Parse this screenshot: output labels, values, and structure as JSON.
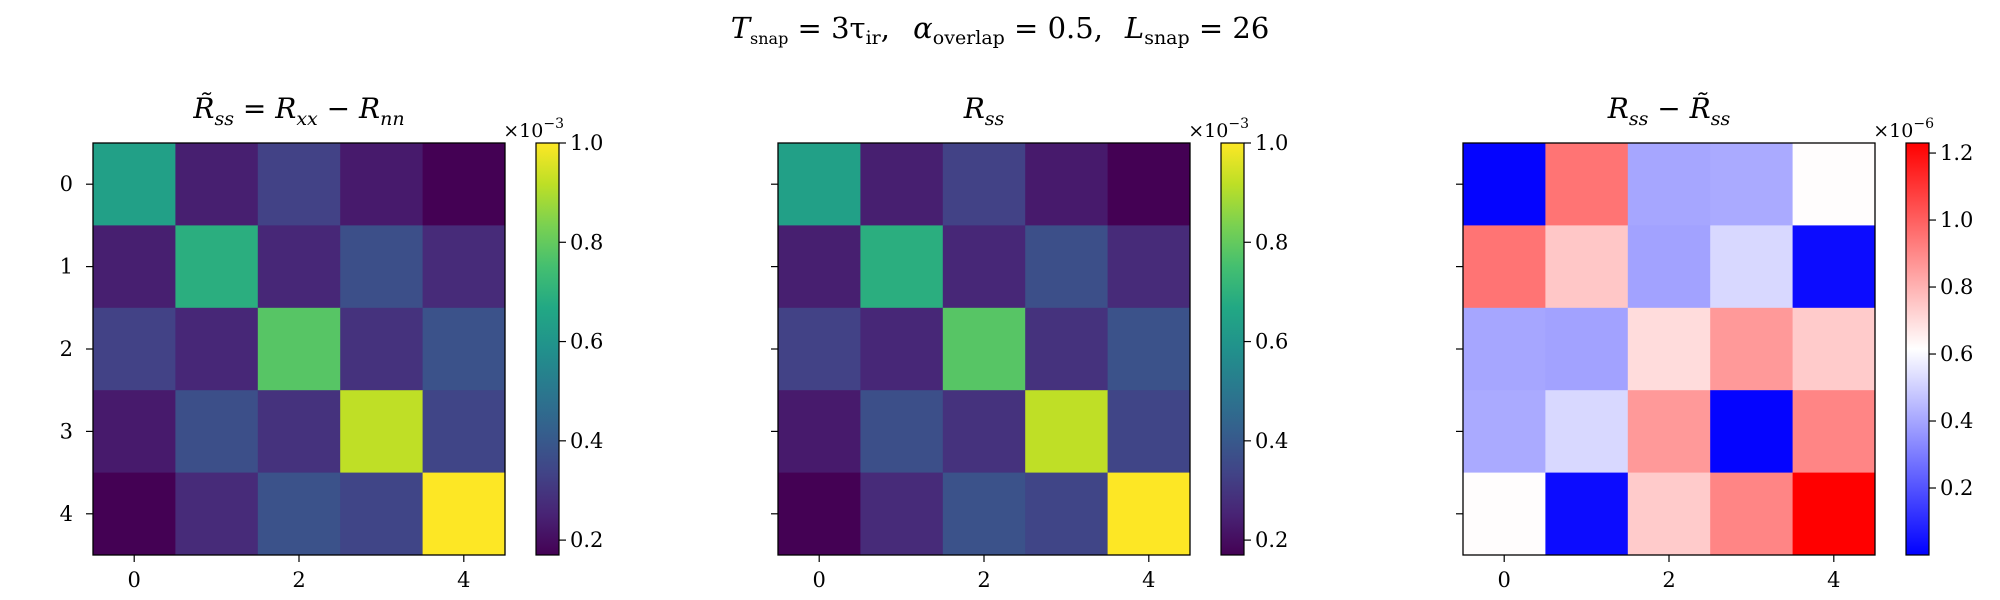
{
  "figure": {
    "suptitle": {
      "t_symbol": "T",
      "t_sub": "snap",
      "t_value": " = 3τ",
      "t_value_sub": "ir",
      "a_symbol": "α",
      "a_sub": "overlap",
      "a_value": " = 0.5,",
      "l_symbol": "L",
      "l_sub": "snap",
      "l_value": " = 26"
    }
  },
  "chart_data": [
    {
      "type": "heatmap",
      "title": {
        "parts": [
          "R̃",
          "ss",
          " = R",
          "xx",
          " − R",
          "nn"
        ]
      },
      "colormap": "viridis",
      "x_ticks": [
        "0",
        "2",
        "4"
      ],
      "x_tick_values": [
        0,
        2,
        4
      ],
      "y_ticks": [
        "0",
        "1",
        "2",
        "3",
        "4"
      ],
      "y_tick_values": [
        0,
        1,
        2,
        3,
        4
      ],
      "show_y_tick_labels": true,
      "values": [
        [
          0.64,
          0.24,
          0.33,
          0.23,
          0.17
        ],
        [
          0.24,
          0.69,
          0.26,
          0.37,
          0.27
        ],
        [
          0.33,
          0.26,
          0.78,
          0.29,
          0.38
        ],
        [
          0.23,
          0.37,
          0.29,
          0.92,
          0.34
        ],
        [
          0.17,
          0.27,
          0.38,
          0.34,
          1.0
        ]
      ],
      "colorbar": {
        "vmin": 0.17,
        "vmax": 1.0,
        "ticks": [
          0.2,
          0.4,
          0.6,
          0.8,
          1.0
        ],
        "tick_labels": [
          "0.2",
          "0.4",
          "0.6",
          "0.8",
          "1.0"
        ],
        "exponent_base": "×10",
        "exponent": "−3"
      }
    },
    {
      "type": "heatmap",
      "title": {
        "parts": [
          "R",
          "ss"
        ]
      },
      "colormap": "viridis",
      "x_ticks": [
        "0",
        "2",
        "4"
      ],
      "x_tick_values": [
        0,
        2,
        4
      ],
      "y_ticks": [
        "0",
        "1",
        "2",
        "3",
        "4"
      ],
      "y_tick_values": [
        0,
        1,
        2,
        3,
        4
      ],
      "show_y_tick_labels": false,
      "values": [
        [
          0.64,
          0.24,
          0.33,
          0.23,
          0.17
        ],
        [
          0.24,
          0.69,
          0.26,
          0.37,
          0.27
        ],
        [
          0.33,
          0.26,
          0.78,
          0.29,
          0.38
        ],
        [
          0.23,
          0.37,
          0.29,
          0.92,
          0.34
        ],
        [
          0.17,
          0.27,
          0.38,
          0.34,
          1.0
        ]
      ],
      "colorbar": {
        "vmin": 0.17,
        "vmax": 1.0,
        "ticks": [
          0.2,
          0.4,
          0.6,
          0.8,
          1.0
        ],
        "tick_labels": [
          "0.2",
          "0.4",
          "0.6",
          "0.8",
          "1.0"
        ],
        "exponent_base": "×10",
        "exponent": "−3"
      }
    },
    {
      "type": "heatmap",
      "title": {
        "parts": [
          "R",
          "ss",
          " − R̃",
          "ss"
        ]
      },
      "colormap": "bwr",
      "x_ticks": [
        "0",
        "2",
        "4"
      ],
      "x_tick_values": [
        0,
        2,
        4
      ],
      "y_ticks": [
        "0",
        "1",
        "2",
        "3",
        "4"
      ],
      "y_tick_values": [
        0,
        1,
        2,
        3,
        4
      ],
      "show_y_tick_labels": false,
      "values": [
        [
          0.01,
          0.95,
          0.4,
          0.41,
          0.62
        ],
        [
          0.95,
          0.75,
          0.39,
          0.52,
          0.03
        ],
        [
          0.4,
          0.39,
          0.7,
          0.86,
          0.74
        ],
        [
          0.41,
          0.52,
          0.86,
          0.01,
          0.91
        ],
        [
          0.62,
          0.03,
          0.74,
          0.91,
          1.23
        ]
      ],
      "colorbar": {
        "vmin": 0.0,
        "vmax": 1.23,
        "ticks": [
          0.2,
          0.4,
          0.6,
          0.8,
          1.0,
          1.2
        ],
        "tick_labels": [
          "0.2",
          "0.4",
          "0.6",
          "0.8",
          "1.0",
          "1.2"
        ],
        "exponent_base": "×10",
        "exponent": "−6"
      }
    }
  ]
}
